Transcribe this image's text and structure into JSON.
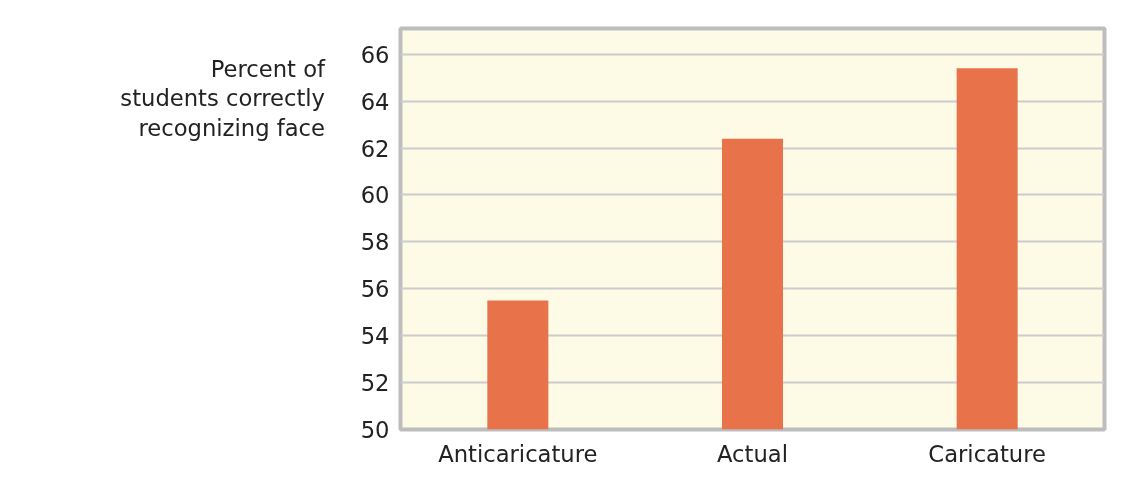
{
  "chart_data": {
    "type": "bar",
    "ylabel": "Percent of\nstudents correctly\nrecognizing face",
    "categories": [
      "Anticaricature",
      "Actual",
      "Caricature"
    ],
    "values": [
      55.5,
      62.4,
      65.4
    ],
    "color": "#e8734a",
    "ylim": [
      50,
      67.1
    ],
    "yticks": [
      50,
      52,
      54,
      56,
      58,
      60,
      62,
      64,
      66
    ],
    "grid": "y"
  }
}
